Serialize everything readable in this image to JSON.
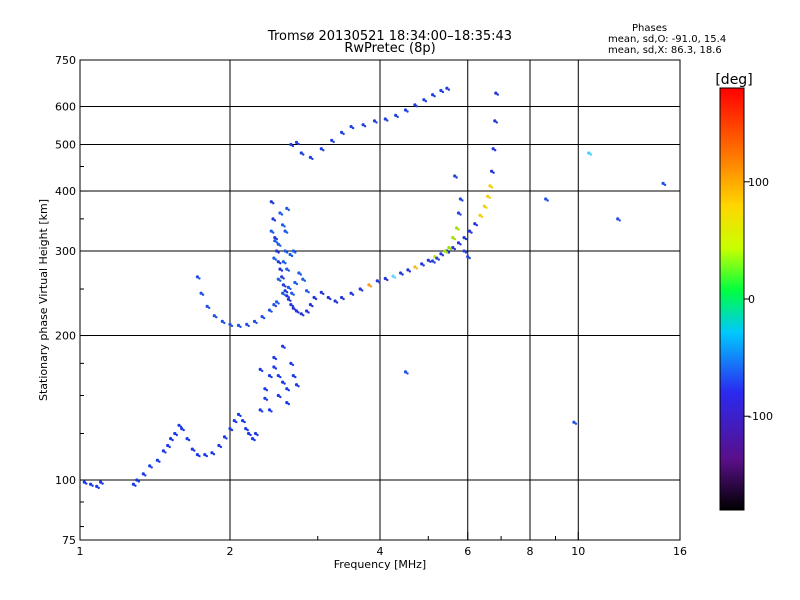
{
  "chart_data": {
    "type": "scatter",
    "title": "Tromsø 20130521 18:34:00–18:35:43",
    "subtitle": "RwPretec (8p)",
    "stats": {
      "heading": "Phases",
      "line_o": "mean, sd,O: -91.0, 15.4",
      "line_x": "mean, sd,X:  86.3, 18.6"
    },
    "xlabel": "Frequency [MHz]",
    "ylabel": "Stationary phase Virtual Height [km]",
    "xscale": "log",
    "yscale": "log",
    "xlim": [
      1,
      16
    ],
    "ylim": [
      75,
      750
    ],
    "x_ticks": [
      1,
      2,
      4,
      6,
      8,
      10,
      16
    ],
    "x_tick_labels": [
      "1",
      "2",
      "4",
      "6",
      "8",
      "10",
      "16"
    ],
    "x_minor": [
      3,
      5,
      7,
      9
    ],
    "y_ticks": [
      75,
      100,
      200,
      300,
      400,
      500,
      600,
      750
    ],
    "y_tick_labels": [
      "75",
      "100",
      "200",
      "300",
      "400",
      "500",
      "600",
      "750"
    ],
    "grid": true,
    "colorbar": {
      "label": "[deg]",
      "range": [
        -180,
        180
      ],
      "ticks": [
        100,
        0,
        -100
      ],
      "tick_labels": [
        "100",
        "0",
        "-100"
      ]
    },
    "series": [
      {
        "values": [
          [
            1.02,
            99
          ],
          [
            1.05,
            98
          ],
          [
            1.08,
            97
          ],
          [
            1.1,
            99
          ],
          [
            1.28,
            98
          ],
          [
            1.3,
            100
          ],
          [
            1.34,
            103
          ],
          [
            1.38,
            107
          ],
          [
            1.43,
            110
          ],
          [
            1.47,
            115
          ],
          [
            1.5,
            118
          ],
          [
            1.52,
            122
          ],
          [
            1.55,
            125
          ],
          [
            1.58,
            130
          ],
          [
            1.6,
            128
          ],
          [
            1.64,
            122
          ],
          [
            1.68,
            116
          ],
          [
            1.72,
            113
          ],
          [
            1.78,
            113
          ],
          [
            1.84,
            114
          ],
          [
            1.9,
            118
          ],
          [
            1.95,
            123
          ],
          [
            2.0,
            128
          ],
          [
            2.04,
            133
          ],
          [
            2.08,
            137
          ],
          [
            2.12,
            133
          ],
          [
            2.15,
            128
          ],
          [
            2.18,
            125
          ],
          [
            2.22,
            122
          ],
          [
            2.25,
            125
          ],
          [
            2.3,
            140
          ],
          [
            2.35,
            155
          ],
          [
            2.4,
            165
          ],
          [
            2.45,
            172
          ],
          [
            2.5,
            165
          ],
          [
            2.55,
            160
          ],
          [
            2.6,
            155
          ],
          [
            2.68,
            165
          ],
          [
            2.72,
            158
          ],
          [
            2.35,
            148
          ],
          [
            2.4,
            140
          ],
          [
            2.5,
            150
          ],
          [
            2.6,
            145
          ],
          [
            2.3,
            170
          ],
          [
            2.45,
            180
          ],
          [
            2.55,
            190
          ],
          [
            2.65,
            175
          ]
        ]
      },
      {
        "values": [
          [
            1.72,
            265
          ],
          [
            1.75,
            245
          ],
          [
            1.8,
            230
          ],
          [
            1.86,
            220
          ],
          [
            1.93,
            214
          ],
          [
            2.0,
            211
          ],
          [
            2.08,
            210
          ],
          [
            2.16,
            211
          ],
          [
            2.24,
            214
          ],
          [
            2.32,
            219
          ],
          [
            2.4,
            226
          ],
          [
            2.45,
            232
          ]
        ]
      },
      {
        "values": [
          [
            2.42,
            380
          ],
          [
            2.44,
            350
          ],
          [
            2.46,
            320
          ],
          [
            2.48,
            300
          ],
          [
            2.5,
            285
          ],
          [
            2.52,
            275
          ],
          [
            2.54,
            265
          ],
          [
            2.56,
            255
          ],
          [
            2.58,
            248
          ],
          [
            2.6,
            242
          ],
          [
            2.62,
            238
          ],
          [
            2.65,
            232
          ],
          [
            2.68,
            228
          ],
          [
            2.72,
            225
          ],
          [
            2.78,
            222
          ],
          [
            2.85,
            225
          ],
          [
            2.9,
            232
          ],
          [
            2.95,
            240
          ],
          [
            3.05,
            246
          ],
          [
            3.15,
            240
          ],
          [
            3.25,
            236
          ],
          [
            3.35,
            240
          ],
          [
            3.5,
            245
          ],
          [
            3.65,
            250
          ],
          [
            3.8,
            255
          ],
          [
            3.95,
            260
          ],
          [
            4.1,
            263
          ],
          [
            4.25,
            266
          ],
          [
            4.4,
            270
          ],
          [
            4.55,
            274
          ],
          [
            4.7,
            278
          ],
          [
            4.85,
            282
          ],
          [
            5.0,
            287
          ],
          [
            5.15,
            292
          ],
          [
            5.3,
            296
          ],
          [
            5.45,
            300
          ],
          [
            5.6,
            305
          ],
          [
            5.75,
            312
          ],
          [
            5.9,
            320
          ],
          [
            6.05,
            330
          ],
          [
            6.2,
            342
          ],
          [
            6.35,
            356
          ],
          [
            6.48,
            372
          ],
          [
            6.58,
            390
          ],
          [
            6.65,
            410
          ],
          [
            6.7,
            440
          ],
          [
            6.75,
            490
          ],
          [
            6.8,
            560
          ],
          [
            6.83,
            640
          ]
        ]
      },
      {
        "values": [
          [
            2.55,
            340
          ],
          [
            2.5,
            310
          ],
          [
            2.58,
            300
          ],
          [
            2.45,
            290
          ],
          [
            2.6,
            275
          ],
          [
            2.5,
            262
          ],
          [
            2.62,
            252
          ],
          [
            2.55,
            245
          ],
          [
            2.48,
            235
          ],
          [
            2.66,
            245
          ],
          [
            2.7,
            258
          ],
          [
            2.75,
            270
          ],
          [
            2.8,
            262
          ],
          [
            2.85,
            248
          ],
          [
            2.52,
            360
          ],
          [
            2.58,
            330
          ],
          [
            2.46,
            315
          ],
          [
            2.64,
            295
          ],
          [
            2.56,
            285
          ],
          [
            2.68,
            300
          ],
          [
            2.42,
            330
          ],
          [
            2.6,
            368
          ]
        ]
      },
      {
        "values": [
          [
            2.65,
            500
          ],
          [
            2.72,
            505
          ],
          [
            2.78,
            480
          ],
          [
            2.9,
            470
          ],
          [
            3.05,
            490
          ],
          [
            3.2,
            510
          ],
          [
            3.35,
            530
          ],
          [
            3.5,
            545
          ],
          [
            3.7,
            550
          ],
          [
            3.9,
            560
          ],
          [
            4.1,
            565
          ],
          [
            4.3,
            575
          ],
          [
            4.5,
            590
          ],
          [
            4.7,
            605
          ],
          [
            4.9,
            620
          ],
          [
            5.1,
            635
          ],
          [
            5.3,
            648
          ],
          [
            5.45,
            655
          ]
        ]
      },
      {
        "values": [
          [
            5.6,
            320
          ],
          [
            5.5,
            305
          ],
          [
            5.4,
            300
          ],
          [
            5.7,
            335
          ],
          [
            5.75,
            360
          ],
          [
            5.8,
            385
          ],
          [
            5.65,
            430
          ],
          [
            5.9,
            300
          ],
          [
            6.0,
            292
          ],
          [
            5.2,
            290
          ],
          [
            5.1,
            286
          ]
        ]
      },
      {
        "values": [
          [
            8.6,
            385
          ],
          [
            10.5,
            480
          ],
          [
            12.0,
            350
          ],
          [
            14.8,
            415
          ],
          [
            9.8,
            132
          ],
          [
            4.5,
            168
          ]
        ]
      }
    ]
  }
}
